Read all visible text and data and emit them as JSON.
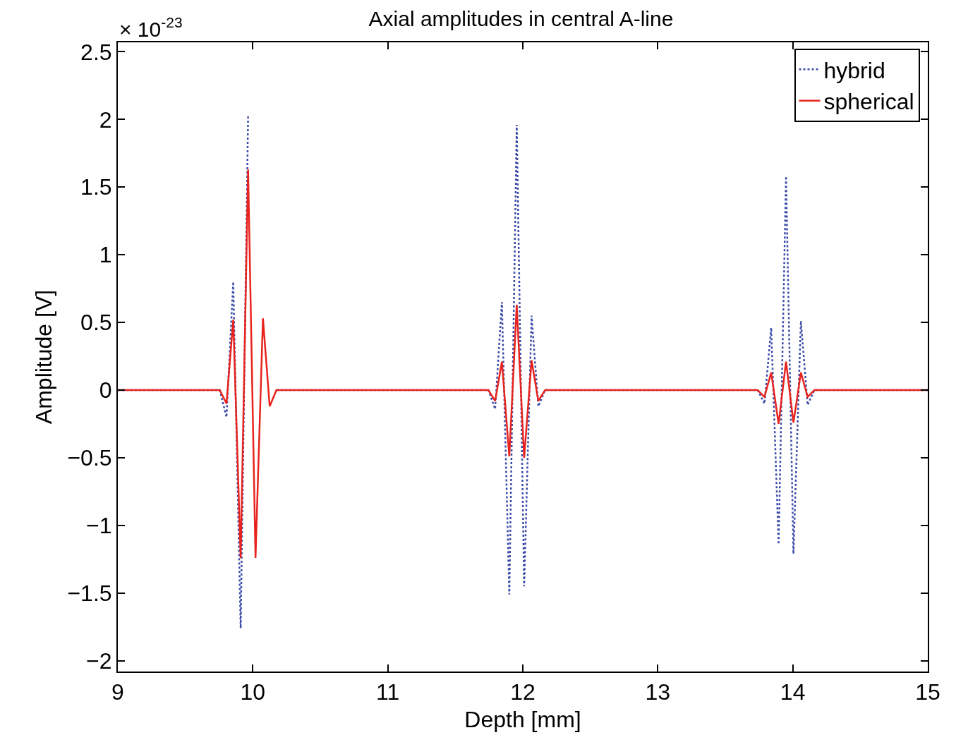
{
  "chart_data": {
    "type": "line",
    "title": "Axial amplitudes in central A-line",
    "xlabel": "Depth [mm]",
    "ylabel": "Amplitude [V]",
    "annotations": [
      "× 10$^{-23}$"
    ],
    "xlim": [
      9,
      15
    ],
    "xticks": [
      9,
      10,
      11,
      12,
      13,
      14,
      15
    ],
    "ylim": [
      -2.08,
      2.57
    ],
    "yticks": [
      -2,
      -1.5,
      -1,
      -0.5,
      0,
      0.5,
      1,
      1.5,
      2,
      2.5
    ],
    "legend": "top right",
    "series": [
      {
        "name": "hybrid",
        "color": "#3b4ba8",
        "line_style": "dotted",
        "x": [
          9,
          9.755,
          9.805,
          9.855,
          9.91,
          9.965,
          10.02,
          10.075,
          10.125,
          10.175,
          11.745,
          11.795,
          11.845,
          11.9,
          11.955,
          12.01,
          12.065,
          12.115,
          12.165,
          13.74,
          13.79,
          13.84,
          13.895,
          13.95,
          14.005,
          14.06,
          14.11,
          14.16,
          15
        ],
        "values": [
          0,
          0,
          -0.2,
          0.8,
          -1.76,
          2.03,
          null,
          null,
          null,
          0,
          0,
          -0.14,
          0.65,
          -1.51,
          1.96,
          -1.45,
          0.55,
          -0.12,
          0,
          0,
          -0.1,
          0.46,
          -1.14,
          1.58,
          -1.21,
          0.51,
          -0.11,
          0,
          0
        ]
      },
      {
        "name": "spherical",
        "color": "#e8231e",
        "line_style": "solid",
        "x": [
          9,
          9.755,
          9.805,
          9.855,
          9.91,
          9.965,
          10.02,
          10.075,
          10.125,
          10.175,
          11.745,
          11.795,
          11.845,
          11.9,
          11.955,
          12.01,
          12.065,
          12.115,
          12.165,
          13.74,
          13.79,
          13.84,
          13.895,
          13.95,
          14.005,
          14.06,
          14.11,
          14.16,
          15
        ],
        "values": [
          0,
          0,
          -0.1,
          0.52,
          -1.24,
          1.63,
          -1.24,
          0.53,
          -0.12,
          0,
          0,
          -0.08,
          0.21,
          -0.49,
          0.63,
          -0.5,
          0.22,
          -0.08,
          0,
          0,
          -0.05,
          0.13,
          -0.25,
          0.21,
          -0.24,
          0.13,
          -0.05,
          0,
          0
        ]
      }
    ]
  }
}
